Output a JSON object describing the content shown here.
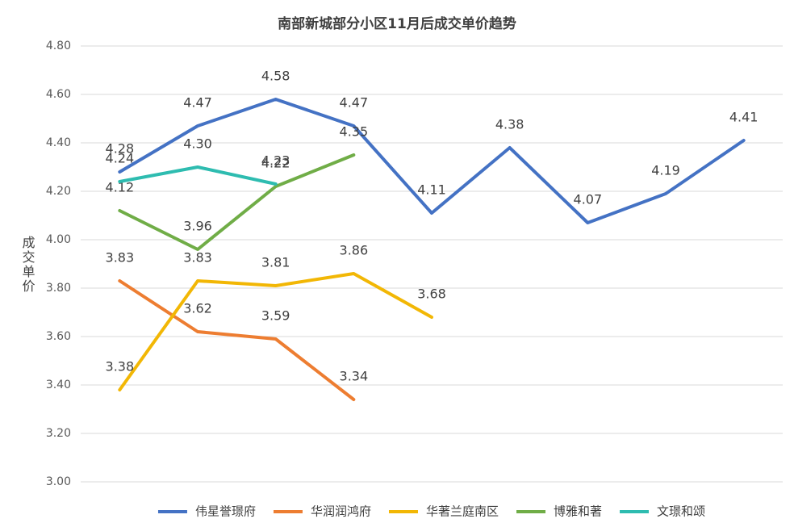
{
  "chart_data": {
    "type": "line",
    "title": "南部新城部分小区11月后成交单价趋势",
    "y_label": "成交单价",
    "categories": [
      null,
      null,
      null,
      null,
      null,
      null,
      null,
      null,
      null
    ],
    "series": [
      {
        "name": "伟星誉璟府",
        "color": "#4472c4",
        "values": [
          4.28,
          4.47,
          4.58,
          4.47,
          4.11,
          4.38,
          4.07,
          4.19,
          4.41
        ],
        "value_labels": [
          "4.28",
          "4.47",
          "4.58",
          "4.47",
          "4.11",
          "4.38",
          "4.07",
          "4.19",
          "4.41"
        ]
      },
      {
        "name": "华润润鸿府",
        "color": "#ed7d31",
        "values": [
          3.83,
          3.62,
          3.59,
          3.34,
          null,
          null,
          null,
          null,
          null
        ],
        "value_labels": [
          "3.83",
          "3.62",
          "3.59",
          "3.34",
          null,
          null,
          null,
          null,
          null
        ]
      },
      {
        "name": "华著兰庭南区",
        "color": "#f2b705",
        "values": [
          3.38,
          3.83,
          3.81,
          3.86,
          3.68,
          null,
          null,
          null,
          null
        ],
        "value_labels": [
          "3.38",
          "3.83",
          "3.81",
          "3.86",
          "3.68",
          null,
          null,
          null,
          null
        ]
      },
      {
        "name": "博雅和著",
        "color": "#70ad47",
        "values": [
          4.12,
          3.96,
          4.22,
          4.35,
          null,
          null,
          null,
          null,
          null
        ],
        "value_labels": [
          "4.12",
          "3.96",
          "4.22",
          "4.35",
          null,
          null,
          null,
          null,
          null
        ]
      },
      {
        "name": "文璟和颂",
        "color": "#2ebcb0",
        "values": [
          4.24,
          4.3,
          4.23,
          null,
          null,
          null,
          null,
          null,
          null
        ],
        "value_labels": [
          "4.24",
          "4.30",
          "4.23",
          null,
          null,
          null,
          null,
          null,
          null
        ]
      }
    ],
    "ylim": [
      3.0,
      4.8
    ],
    "yticks": [
      {
        "value": 3.0,
        "label": "3.00"
      },
      {
        "value": 3.2,
        "label": "3.20"
      },
      {
        "value": 3.4,
        "label": "3.40"
      },
      {
        "value": 3.6,
        "label": "3.60"
      },
      {
        "value": 3.8,
        "label": "3.80"
      },
      {
        "value": 4.0,
        "label": "4.00"
      },
      {
        "value": 4.2,
        "label": "4.20"
      },
      {
        "value": 4.4,
        "label": "4.40"
      },
      {
        "value": 4.6,
        "label": "4.60"
      },
      {
        "value": 4.8,
        "label": "4.80"
      }
    ],
    "grid": true,
    "legend": "bottom"
  }
}
